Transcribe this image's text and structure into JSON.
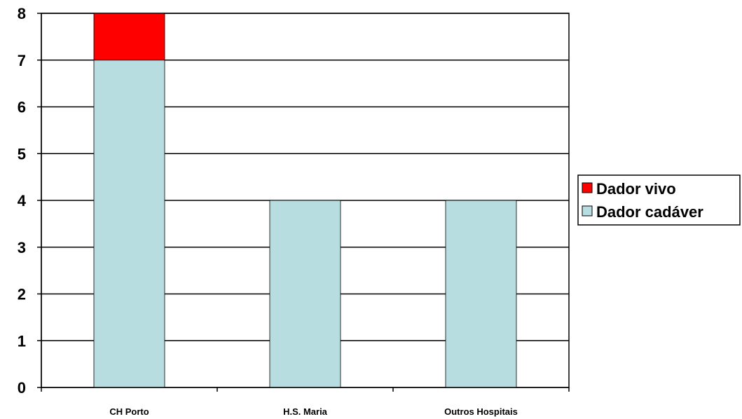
{
  "chart_data": {
    "type": "bar",
    "stacked": true,
    "title": "",
    "xlabel": "",
    "ylabel": "",
    "categories": [
      "CH Porto",
      "H.S. Maria",
      "Outros Hospitais"
    ],
    "series": [
      {
        "name": "Dador cadáver",
        "values": [
          7,
          4,
          4
        ],
        "color": "#b7dde0"
      },
      {
        "name": "Dador vivo",
        "values": [
          1,
          0,
          0
        ],
        "color": "#ff0000"
      }
    ],
    "ylim": [
      0,
      8
    ],
    "yticks": [
      "0",
      "1",
      "2",
      "3",
      "4",
      "5",
      "6",
      "7",
      "8"
    ],
    "grid": true,
    "legend": {
      "position": "right",
      "entries": [
        "Dador vivo",
        "Dador cadáver"
      ]
    }
  }
}
